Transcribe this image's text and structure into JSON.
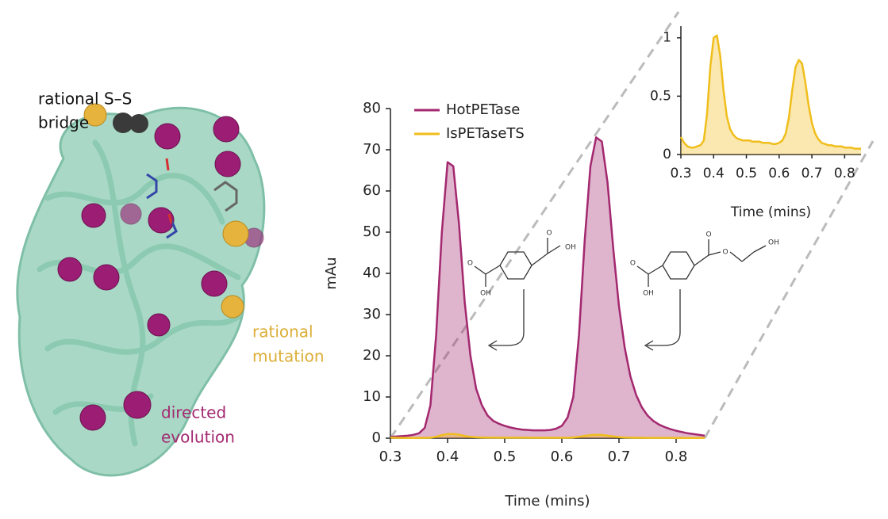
{
  "chart_data": [
    {
      "type": "line",
      "x_label": "Time (mins)",
      "y_label": "mAu",
      "x": [
        0.3,
        0.31,
        0.32,
        0.33,
        0.34,
        0.35,
        0.36,
        0.37,
        0.38,
        0.39,
        0.4,
        0.41,
        0.42,
        0.43,
        0.44,
        0.45,
        0.46,
        0.47,
        0.48,
        0.49,
        0.5,
        0.51,
        0.52,
        0.53,
        0.54,
        0.55,
        0.56,
        0.57,
        0.58,
        0.59,
        0.6,
        0.61,
        0.62,
        0.63,
        0.64,
        0.65,
        0.66,
        0.67,
        0.68,
        0.69,
        0.7,
        0.71,
        0.72,
        0.73,
        0.74,
        0.75,
        0.76,
        0.77,
        0.78,
        0.79,
        0.8,
        0.81,
        0.82,
        0.83,
        0.84,
        0.85
      ],
      "series": [
        {
          "name": "HotPETase",
          "color": "#a3286f",
          "values": [
            0.3,
            0.4,
            0.5,
            0.6,
            0.8,
            1.2,
            2.5,
            8,
            25,
            50,
            67,
            66,
            52,
            33,
            20,
            12,
            8,
            5.5,
            4.2,
            3.5,
            3,
            2.6,
            2.3,
            2.1,
            2,
            1.9,
            1.9,
            1.9,
            2,
            2.3,
            3,
            5,
            10,
            25,
            48,
            66,
            73,
            72,
            62,
            46,
            32,
            22,
            15,
            10.5,
            7.5,
            5.5,
            4.2,
            3.3,
            2.7,
            2.2,
            1.8,
            1.5,
            1.2,
            1,
            0.8,
            0.6
          ]
        },
        {
          "name": "IsPETaseTS",
          "color": "#f0be1c",
          "values": [
            0.15,
            0.1,
            0.07,
            0.06,
            0.06,
            0.07,
            0.08,
            0.12,
            0.35,
            0.75,
            1.0,
            1.02,
            0.85,
            0.55,
            0.33,
            0.22,
            0.17,
            0.14,
            0.13,
            0.12,
            0.12,
            0.12,
            0.11,
            0.11,
            0.11,
            0.1,
            0.1,
            0.1,
            0.09,
            0.09,
            0.1,
            0.12,
            0.18,
            0.32,
            0.55,
            0.75,
            0.81,
            0.78,
            0.62,
            0.42,
            0.27,
            0.18,
            0.13,
            0.1,
            0.09,
            0.08,
            0.08,
            0.07,
            0.07,
            0.07,
            0.06,
            0.06,
            0.06,
            0.05,
            0.05,
            0.05
          ]
        }
      ],
      "xlim": [
        0.3,
        0.85
      ],
      "xticks": [
        0.3,
        0.4,
        0.5,
        0.6,
        0.7,
        0.8
      ],
      "ylim": [
        0,
        80
      ],
      "yticks": [
        0,
        10,
        20,
        30,
        40,
        50,
        60,
        70,
        80
      ],
      "legend": "top-left",
      "fill": true
    },
    {
      "type": "line",
      "x_label": "Time (mins)",
      "x": [
        0.3,
        0.31,
        0.32,
        0.33,
        0.34,
        0.35,
        0.36,
        0.37,
        0.38,
        0.39,
        0.4,
        0.41,
        0.42,
        0.43,
        0.44,
        0.45,
        0.46,
        0.47,
        0.48,
        0.49,
        0.5,
        0.51,
        0.52,
        0.53,
        0.54,
        0.55,
        0.56,
        0.57,
        0.58,
        0.59,
        0.6,
        0.61,
        0.62,
        0.63,
        0.64,
        0.65,
        0.66,
        0.67,
        0.68,
        0.69,
        0.7,
        0.71,
        0.72,
        0.73,
        0.74,
        0.75,
        0.76,
        0.77,
        0.78,
        0.79,
        0.8,
        0.81,
        0.82,
        0.83,
        0.84,
        0.85
      ],
      "series": [
        {
          "color": "#f0be1c",
          "values": [
            0.15,
            0.1,
            0.07,
            0.06,
            0.06,
            0.07,
            0.08,
            0.12,
            0.35,
            0.75,
            1.0,
            1.02,
            0.85,
            0.55,
            0.33,
            0.22,
            0.17,
            0.14,
            0.13,
            0.12,
            0.12,
            0.12,
            0.11,
            0.11,
            0.11,
            0.1,
            0.1,
            0.1,
            0.09,
            0.09,
            0.1,
            0.12,
            0.18,
            0.32,
            0.55,
            0.75,
            0.81,
            0.78,
            0.62,
            0.42,
            0.27,
            0.18,
            0.13,
            0.1,
            0.09,
            0.08,
            0.08,
            0.07,
            0.07,
            0.07,
            0.06,
            0.06,
            0.06,
            0.05,
            0.05,
            0.05
          ]
        }
      ],
      "xlim": [
        0.3,
        0.85
      ],
      "xticks": [
        0.3,
        0.4,
        0.5,
        0.6,
        0.7,
        0.8
      ],
      "ylim": [
        0,
        1.1
      ],
      "yticks": [
        0,
        0.5,
        1
      ],
      "fill": true
    }
  ],
  "structure": {
    "ss_bridge": [
      "rational S–S",
      "bridge"
    ],
    "mutation": [
      "rational",
      "mutation"
    ],
    "evolution": [
      "directed",
      "evolution"
    ]
  },
  "molecules": [
    [
      "O",
      "OH",
      "O",
      "OH"
    ],
    [
      "O",
      "O",
      "OH",
      "O",
      "OH"
    ]
  ]
}
